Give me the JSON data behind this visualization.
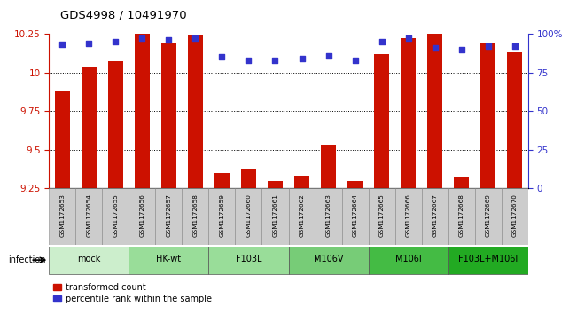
{
  "title": "GDS4998 / 10491970",
  "samples": [
    "GSM1172653",
    "GSM1172654",
    "GSM1172655",
    "GSM1172656",
    "GSM1172657",
    "GSM1172658",
    "GSM1172659",
    "GSM1172660",
    "GSM1172661",
    "GSM1172662",
    "GSM1172663",
    "GSM1172664",
    "GSM1172665",
    "GSM1172666",
    "GSM1172667",
    "GSM1172668",
    "GSM1172669",
    "GSM1172670"
  ],
  "bar_values": [
    9.88,
    10.04,
    10.07,
    10.25,
    10.19,
    10.24,
    9.35,
    9.37,
    9.3,
    9.33,
    9.53,
    9.3,
    10.12,
    10.22,
    10.25,
    9.32,
    10.19,
    10.13
  ],
  "dot_values": [
    93,
    94,
    95,
    97,
    96,
    97,
    85,
    83,
    83,
    84,
    86,
    83,
    95,
    97,
    91,
    90,
    92,
    92
  ],
  "ylim": [
    9.25,
    10.25
  ],
  "yticks": [
    9.25,
    9.5,
    9.75,
    10.0,
    10.25
  ],
  "ytick_labels": [
    "9.25",
    "9.5",
    "9.75",
    "10",
    "10.25"
  ],
  "y2lim": [
    0,
    100
  ],
  "y2ticks": [
    0,
    25,
    50,
    75,
    100
  ],
  "y2tick_labels": [
    "0",
    "25",
    "50",
    "75",
    "100%"
  ],
  "bar_color": "#cc1100",
  "dot_color": "#3333cc",
  "bar_width": 0.55,
  "group_defs": [
    {
      "label": "mock",
      "indices": [
        0,
        1,
        2
      ],
      "color": "#cceecc"
    },
    {
      "label": "HK-wt",
      "indices": [
        3,
        4,
        5
      ],
      "color": "#99dd99"
    },
    {
      "label": "F103L",
      "indices": [
        6,
        7,
        8
      ],
      "color": "#99dd99"
    },
    {
      "label": "M106V",
      "indices": [
        9,
        10,
        11
      ],
      "color": "#77cc77"
    },
    {
      "label": "M106I",
      "indices": [
        12,
        13,
        14
      ],
      "color": "#44bb44"
    },
    {
      "label": "F103L+M106I",
      "indices": [
        15,
        16,
        17
      ],
      "color": "#22aa22"
    }
  ],
  "infection_label": "infection",
  "legend_entries": [
    "transformed count",
    "percentile rank within the sample"
  ],
  "background_color": "#ffffff",
  "grid_lines": [
    9.5,
    9.75,
    10.0
  ],
  "sample_box_color": "#cccccc",
  "sample_box_edge": "#888888"
}
